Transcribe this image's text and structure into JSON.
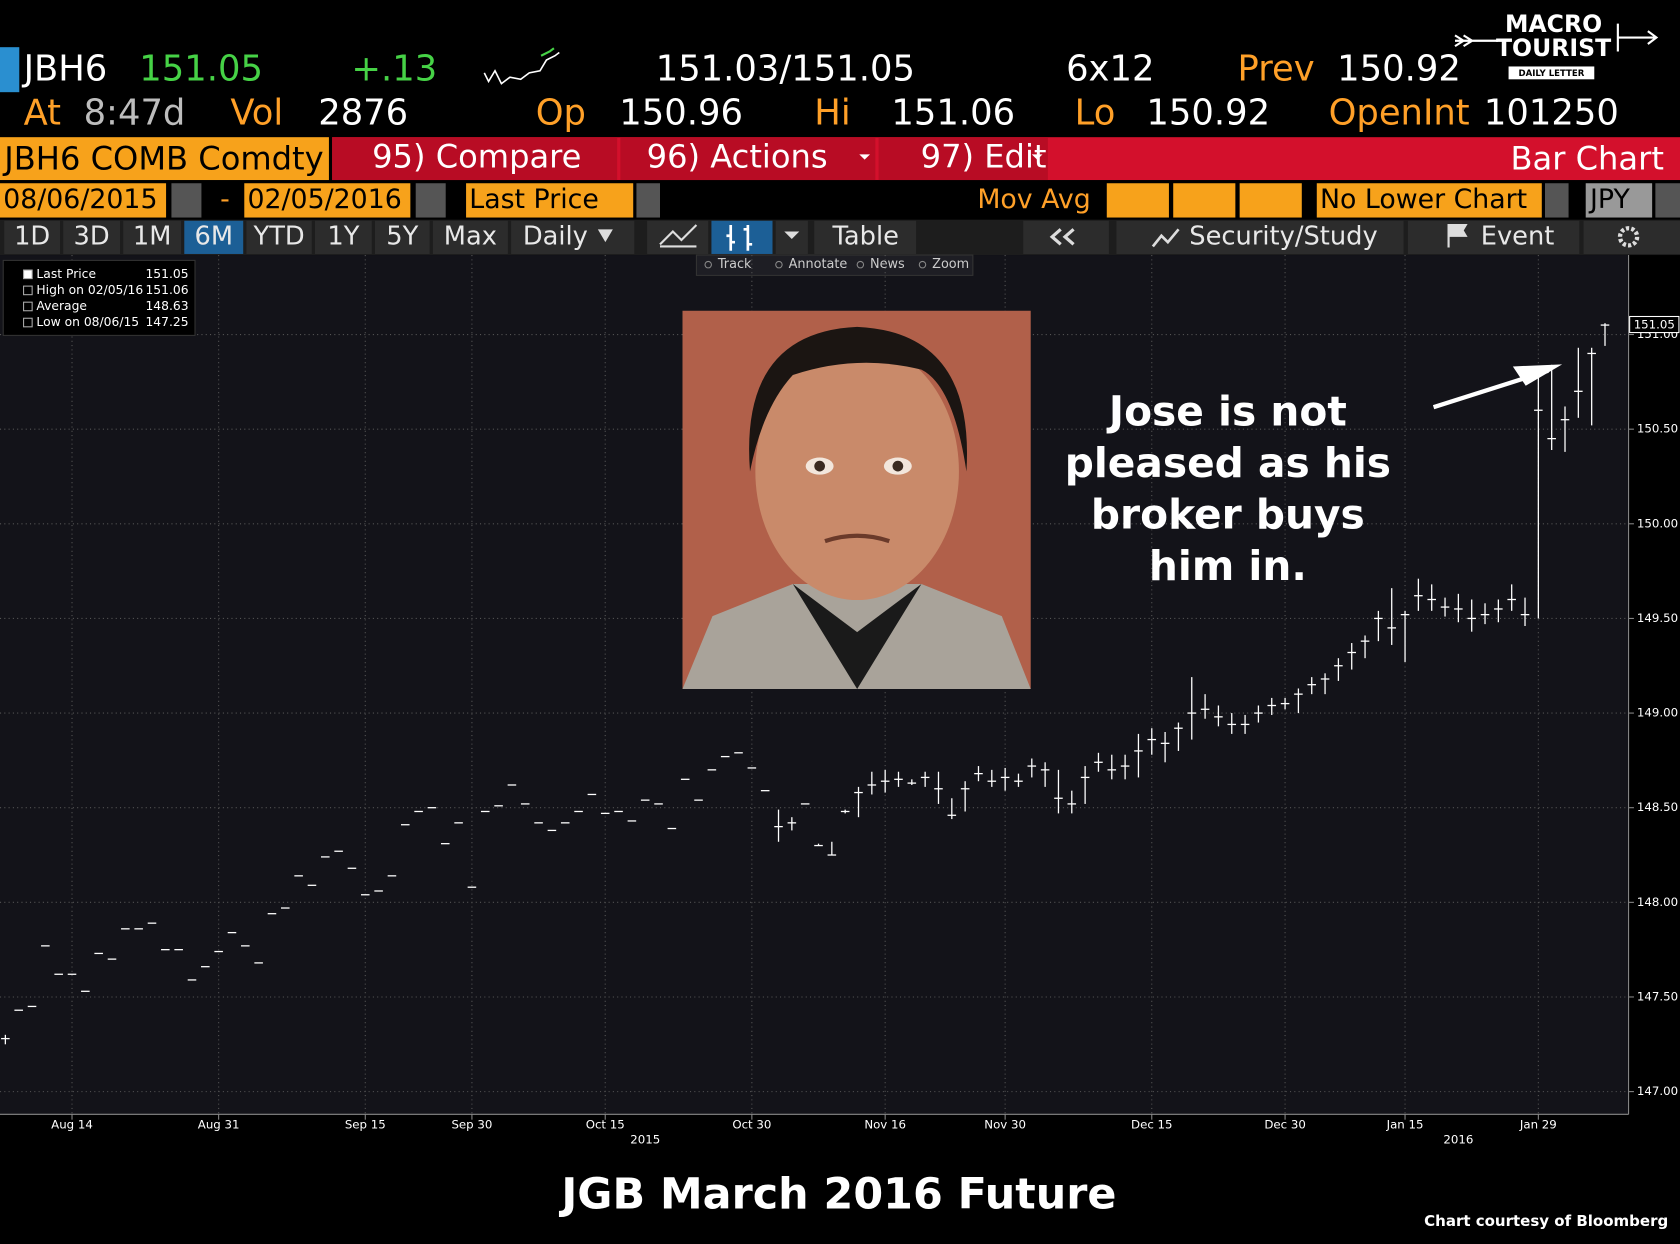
{
  "quote": {
    "ticker": "JBH6",
    "last": "151.05",
    "change": "+.13",
    "bid_ask": "151.03/151.05",
    "size": "6x12",
    "prev_label": "Prev",
    "prev": "150.92",
    "at_label": "At",
    "time": "8:47d",
    "vol_label": "Vol",
    "vol": "2876",
    "open_label": "Op",
    "open": "150.96",
    "high_label": "Hi",
    "high": "151.06",
    "low_label": "Lo",
    "low": "150.92",
    "oi_label": "OpenInt",
    "oi": "101250"
  },
  "logo": {
    "line1": "MACRO",
    "line2": "TOURIST",
    "line3": "DAILY LETTER"
  },
  "menu": {
    "security": "JBH6 COMB Comdty",
    "compare": "95) Compare",
    "actions": "96) Actions",
    "edit": "97) Edit",
    "chart_type": "Bar Chart"
  },
  "controls": {
    "start": "08/06/2015",
    "dash": "-",
    "end": "02/05/2016",
    "field": "Last Price",
    "mov_avg": "Mov Avg",
    "lower": "No Lower Chart",
    "currency": "JPY"
  },
  "ranges": [
    "1D",
    "3D",
    "1M",
    "6M",
    "YTD",
    "1Y",
    "5Y",
    "Max"
  ],
  "toolbar": {
    "period": "Daily",
    "table": "Table",
    "security_study": "Security/Study",
    "event": "Event"
  },
  "tools": [
    "Track",
    "Annotate",
    "News",
    "Zoom"
  ],
  "chart_data": {
    "type": "ohlc",
    "title": "JGB March 2016 Future",
    "credit": "Chart courtesy of Bloomberg",
    "annotation": [
      "Jose is not",
      "pleased as his",
      "broker buys",
      "him in."
    ],
    "legend_box": [
      {
        "label": "Last Price",
        "value": "151.05"
      },
      {
        "label": "High on 02/05/16",
        "value": "151.06"
      },
      {
        "label": "Average",
        "value": "148.63"
      },
      {
        "label": "Low on 08/06/15",
        "value": "147.25"
      }
    ],
    "price_tag": "151.05",
    "ylim": [
      146.88,
      151.42
    ],
    "yticks": [
      {
        "value": 147,
        "label": "147.00"
      },
      {
        "value": 147.5,
        "label": "147.50"
      },
      {
        "value": 148,
        "label": "148.00"
      },
      {
        "value": 148.5,
        "label": "148.50"
      },
      {
        "value": 149,
        "label": "149.00"
      },
      {
        "value": 149.5,
        "label": "149.50"
      },
      {
        "value": 150,
        "label": "150.00"
      },
      {
        "value": 150.5,
        "label": "150.50"
      },
      {
        "value": 151,
        "label": "151.00"
      }
    ],
    "grid": true,
    "categories": [
      null,
      null,
      null,
      null,
      null,
      "Aug 14",
      null,
      null,
      null,
      null,
      null,
      null,
      null,
      null,
      null,
      null,
      "Aug 31",
      null,
      null,
      null,
      null,
      null,
      null,
      null,
      null,
      null,
      null,
      "Sep 15",
      null,
      null,
      null,
      null,
      null,
      null,
      null,
      "Sep 30",
      null,
      null,
      null,
      null,
      null,
      null,
      null,
      null,
      null,
      "Oct 15",
      null,
      null,
      null,
      null,
      null,
      null,
      null,
      null,
      null,
      null,
      "Oct 30",
      null,
      null,
      null,
      null,
      null,
      null,
      null,
      null,
      null,
      "Nov 16",
      null,
      null,
      null,
      null,
      null,
      null,
      null,
      null,
      "Nov 30",
      null,
      null,
      null,
      null,
      null,
      null,
      null,
      null,
      null,
      null,
      "Dec 15",
      null,
      null,
      null,
      null,
      null,
      null,
      null,
      null,
      null,
      "Dec 30",
      null,
      null,
      null,
      null,
      null,
      null,
      null,
      null,
      "Jan 15",
      null,
      null,
      null,
      null,
      null,
      null,
      null,
      null,
      null,
      "Jan 29",
      null,
      null,
      null,
      null,
      null
    ],
    "year_categories": [
      null,
      null,
      null,
      null,
      null,
      null,
      null,
      null,
      null,
      null,
      null,
      null,
      null,
      null,
      null,
      null,
      null,
      null,
      null,
      null,
      null,
      null,
      null,
      null,
      null,
      null,
      null,
      null,
      null,
      null,
      null,
      null,
      null,
      null,
      null,
      null,
      null,
      null,
      null,
      null,
      null,
      null,
      null,
      null,
      null,
      null,
      null,
      null,
      "2015",
      null,
      null,
      null,
      null,
      null,
      null,
      null,
      null,
      null,
      null,
      null,
      null,
      null,
      null,
      null,
      null,
      null,
      null,
      null,
      null,
      null,
      null,
      null,
      null,
      null,
      null,
      null,
      null,
      null,
      null,
      null,
      null,
      null,
      null,
      null,
      null,
      null,
      null,
      null,
      null,
      null,
      null,
      null,
      null,
      null,
      null,
      null,
      null,
      null,
      null,
      null,
      null,
      null,
      null,
      null,
      null,
      null,
      null,
      null,
      null,
      "2016",
      null,
      null,
      null,
      null,
      null,
      null,
      null,
      null,
      null,
      null,
      null
    ],
    "series": [
      {
        "name": "Last Price",
        "color": "#ffffff",
        "values": [
          147.28,
          147.43,
          147.45,
          147.77,
          147.62,
          147.62,
          147.53,
          147.73,
          147.7,
          147.86,
          147.86,
          147.89,
          147.75,
          147.75,
          147.59,
          147.66,
          147.74,
          147.84,
          147.77,
          147.68,
          147.94,
          147.97,
          148.14,
          148.09,
          148.24,
          148.27,
          148.18,
          148.04,
          148.06,
          148.14,
          148.41,
          148.48,
          148.5,
          148.31,
          148.42,
          148.08,
          148.48,
          148.51,
          148.62,
          148.52,
          148.42,
          148.38,
          148.42,
          148.48,
          148.57,
          148.47,
          148.48,
          148.43,
          148.54,
          148.52,
          148.39,
          148.65,
          148.54,
          148.7,
          148.77,
          148.79,
          148.71,
          148.59,
          148.4,
          148.42,
          148.52,
          148.3,
          148.25,
          148.48,
          148.58,
          148.62,
          148.64,
          148.65,
          148.63,
          148.66,
          148.6,
          148.46,
          148.6,
          148.68,
          148.64,
          148.66,
          148.64,
          148.72,
          148.7,
          148.55,
          148.52,
          148.66,
          148.74,
          148.7,
          148.72,
          148.8,
          148.86,
          148.84,
          148.92,
          149.0,
          149.02,
          148.98,
          148.94,
          148.94,
          149.0,
          149.04,
          149.05,
          149.1,
          149.15,
          149.18,
          149.25,
          149.32,
          149.38,
          149.5,
          149.45,
          149.52,
          149.62,
          149.6,
          149.56,
          149.55,
          149.5,
          149.52,
          149.55,
          149.6,
          149.52,
          150.6,
          150.45,
          150.55,
          150.7,
          150.9,
          151.05
        ],
        "high": [
          147.3,
          147.43,
          147.45,
          147.77,
          147.62,
          147.62,
          147.53,
          147.73,
          147.7,
          147.86,
          147.86,
          147.89,
          147.75,
          147.75,
          147.59,
          147.66,
          147.74,
          147.84,
          147.77,
          147.68,
          147.94,
          147.97,
          148.14,
          148.09,
          148.24,
          148.27,
          148.18,
          148.04,
          148.06,
          148.14,
          148.41,
          148.48,
          148.5,
          148.31,
          148.42,
          148.08,
          148.48,
          148.51,
          148.62,
          148.52,
          148.42,
          148.38,
          148.42,
          148.48,
          148.57,
          148.47,
          148.48,
          148.43,
          148.54,
          148.52,
          148.39,
          148.65,
          148.54,
          148.7,
          148.77,
          148.79,
          148.71,
          148.59,
          148.49,
          148.45,
          148.52,
          148.31,
          148.32,
          148.49,
          148.61,
          148.69,
          148.7,
          148.69,
          148.65,
          148.69,
          148.69,
          148.55,
          148.64,
          148.72,
          148.7,
          148.71,
          148.68,
          148.76,
          148.74,
          148.7,
          148.59,
          148.72,
          148.79,
          148.78,
          148.78,
          148.89,
          148.92,
          148.9,
          148.95,
          149.19,
          149.1,
          149.04,
          149.0,
          148.99,
          149.04,
          149.08,
          149.08,
          149.13,
          149.19,
          149.21,
          149.29,
          149.37,
          149.41,
          149.54,
          149.66,
          149.54,
          149.71,
          149.68,
          149.61,
          149.63,
          149.6,
          149.58,
          149.6,
          149.68,
          149.61,
          150.78,
          150.84,
          150.62,
          150.93,
          150.93,
          151.06
        ],
        "low": [
          147.25,
          147.43,
          147.45,
          147.77,
          147.62,
          147.62,
          147.53,
          147.73,
          147.7,
          147.86,
          147.86,
          147.89,
          147.75,
          147.75,
          147.59,
          147.66,
          147.74,
          147.84,
          147.77,
          147.68,
          147.94,
          147.97,
          148.14,
          148.09,
          148.24,
          148.27,
          148.18,
          148.04,
          148.06,
          148.14,
          148.41,
          148.48,
          148.5,
          148.31,
          148.42,
          148.08,
          148.48,
          148.51,
          148.62,
          148.52,
          148.42,
          148.38,
          148.42,
          148.48,
          148.57,
          148.47,
          148.48,
          148.43,
          148.54,
          148.52,
          148.39,
          148.65,
          148.54,
          148.7,
          148.77,
          148.79,
          148.71,
          148.59,
          148.32,
          148.38,
          148.52,
          148.3,
          148.25,
          148.47,
          148.45,
          148.57,
          148.58,
          148.61,
          148.62,
          148.61,
          148.52,
          148.44,
          148.48,
          148.64,
          148.61,
          148.59,
          148.61,
          148.66,
          148.61,
          148.47,
          148.47,
          148.52,
          148.69,
          148.65,
          148.65,
          148.66,
          148.78,
          148.74,
          148.8,
          148.86,
          148.97,
          148.93,
          148.89,
          148.89,
          148.95,
          148.99,
          149.02,
          149.0,
          149.1,
          149.1,
          149.17,
          149.23,
          149.29,
          149.38,
          149.36,
          149.27,
          149.54,
          149.54,
          149.51,
          149.48,
          149.43,
          149.47,
          149.48,
          149.54,
          149.46,
          149.5,
          150.39,
          150.38,
          150.56,
          150.52,
          150.94
        ]
      }
    ]
  }
}
